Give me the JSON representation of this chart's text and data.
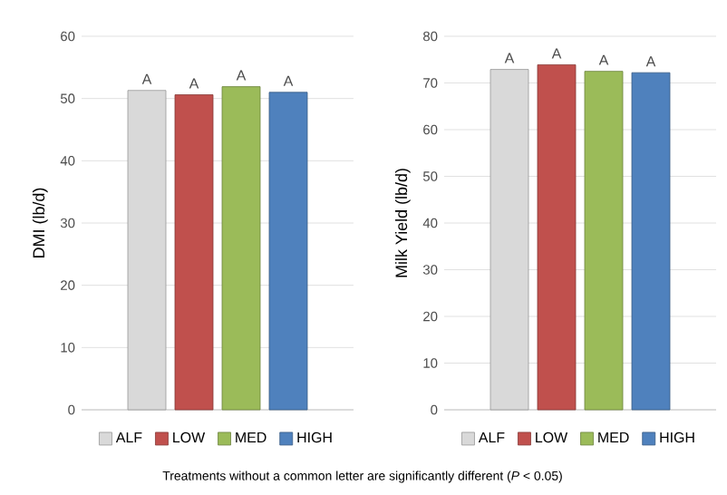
{
  "chart_data": [
    {
      "type": "bar",
      "ylabel": "DMI (lb/d)",
      "categories": [
        null
      ],
      "ylim": [
        0,
        60
      ],
      "yticks": [
        0,
        10,
        20,
        30,
        40,
        50,
        60
      ],
      "grid": "y",
      "legend": "bottom",
      "series": [
        {
          "name": "ALF",
          "color": "#d9d9d9",
          "values": [
            51.3
          ],
          "value_labels": [
            "A"
          ]
        },
        {
          "name": "LOW",
          "color": "#c0504d",
          "values": [
            50.6
          ],
          "value_labels": [
            "A"
          ]
        },
        {
          "name": "MED",
          "color": "#9bbb59",
          "values": [
            51.9
          ],
          "value_labels": [
            "A"
          ]
        },
        {
          "name": "HIGH",
          "color": "#4f81bd",
          "values": [
            51.0
          ],
          "value_labels": [
            "A"
          ]
        }
      ]
    },
    {
      "type": "bar",
      "ylabel": "Milk Yield (lb/d)",
      "categories": [
        null
      ],
      "ylim": [
        0,
        80
      ],
      "yticks": [
        0,
        10,
        20,
        30,
        40,
        50,
        60,
        70,
        80
      ],
      "grid": "y",
      "legend": "bottom",
      "annotations": [
        "Treatments without a common letter are significantly different (*P* < 0.05)"
      ],
      "series": [
        {
          "name": "ALF",
          "color": "#d9d9d9",
          "values": [
            72.9
          ],
          "value_labels": [
            "A"
          ]
        },
        {
          "name": "LOW",
          "color": "#c0504d",
          "values": [
            73.9
          ],
          "value_labels": [
            "A"
          ]
        },
        {
          "name": "MED",
          "color": "#9bbb59",
          "values": [
            72.5
          ],
          "value_labels": [
            "A"
          ]
        },
        {
          "name": "HIGH",
          "color": "#4f81bd",
          "values": [
            72.2
          ],
          "value_labels": [
            "A"
          ]
        }
      ]
    }
  ]
}
